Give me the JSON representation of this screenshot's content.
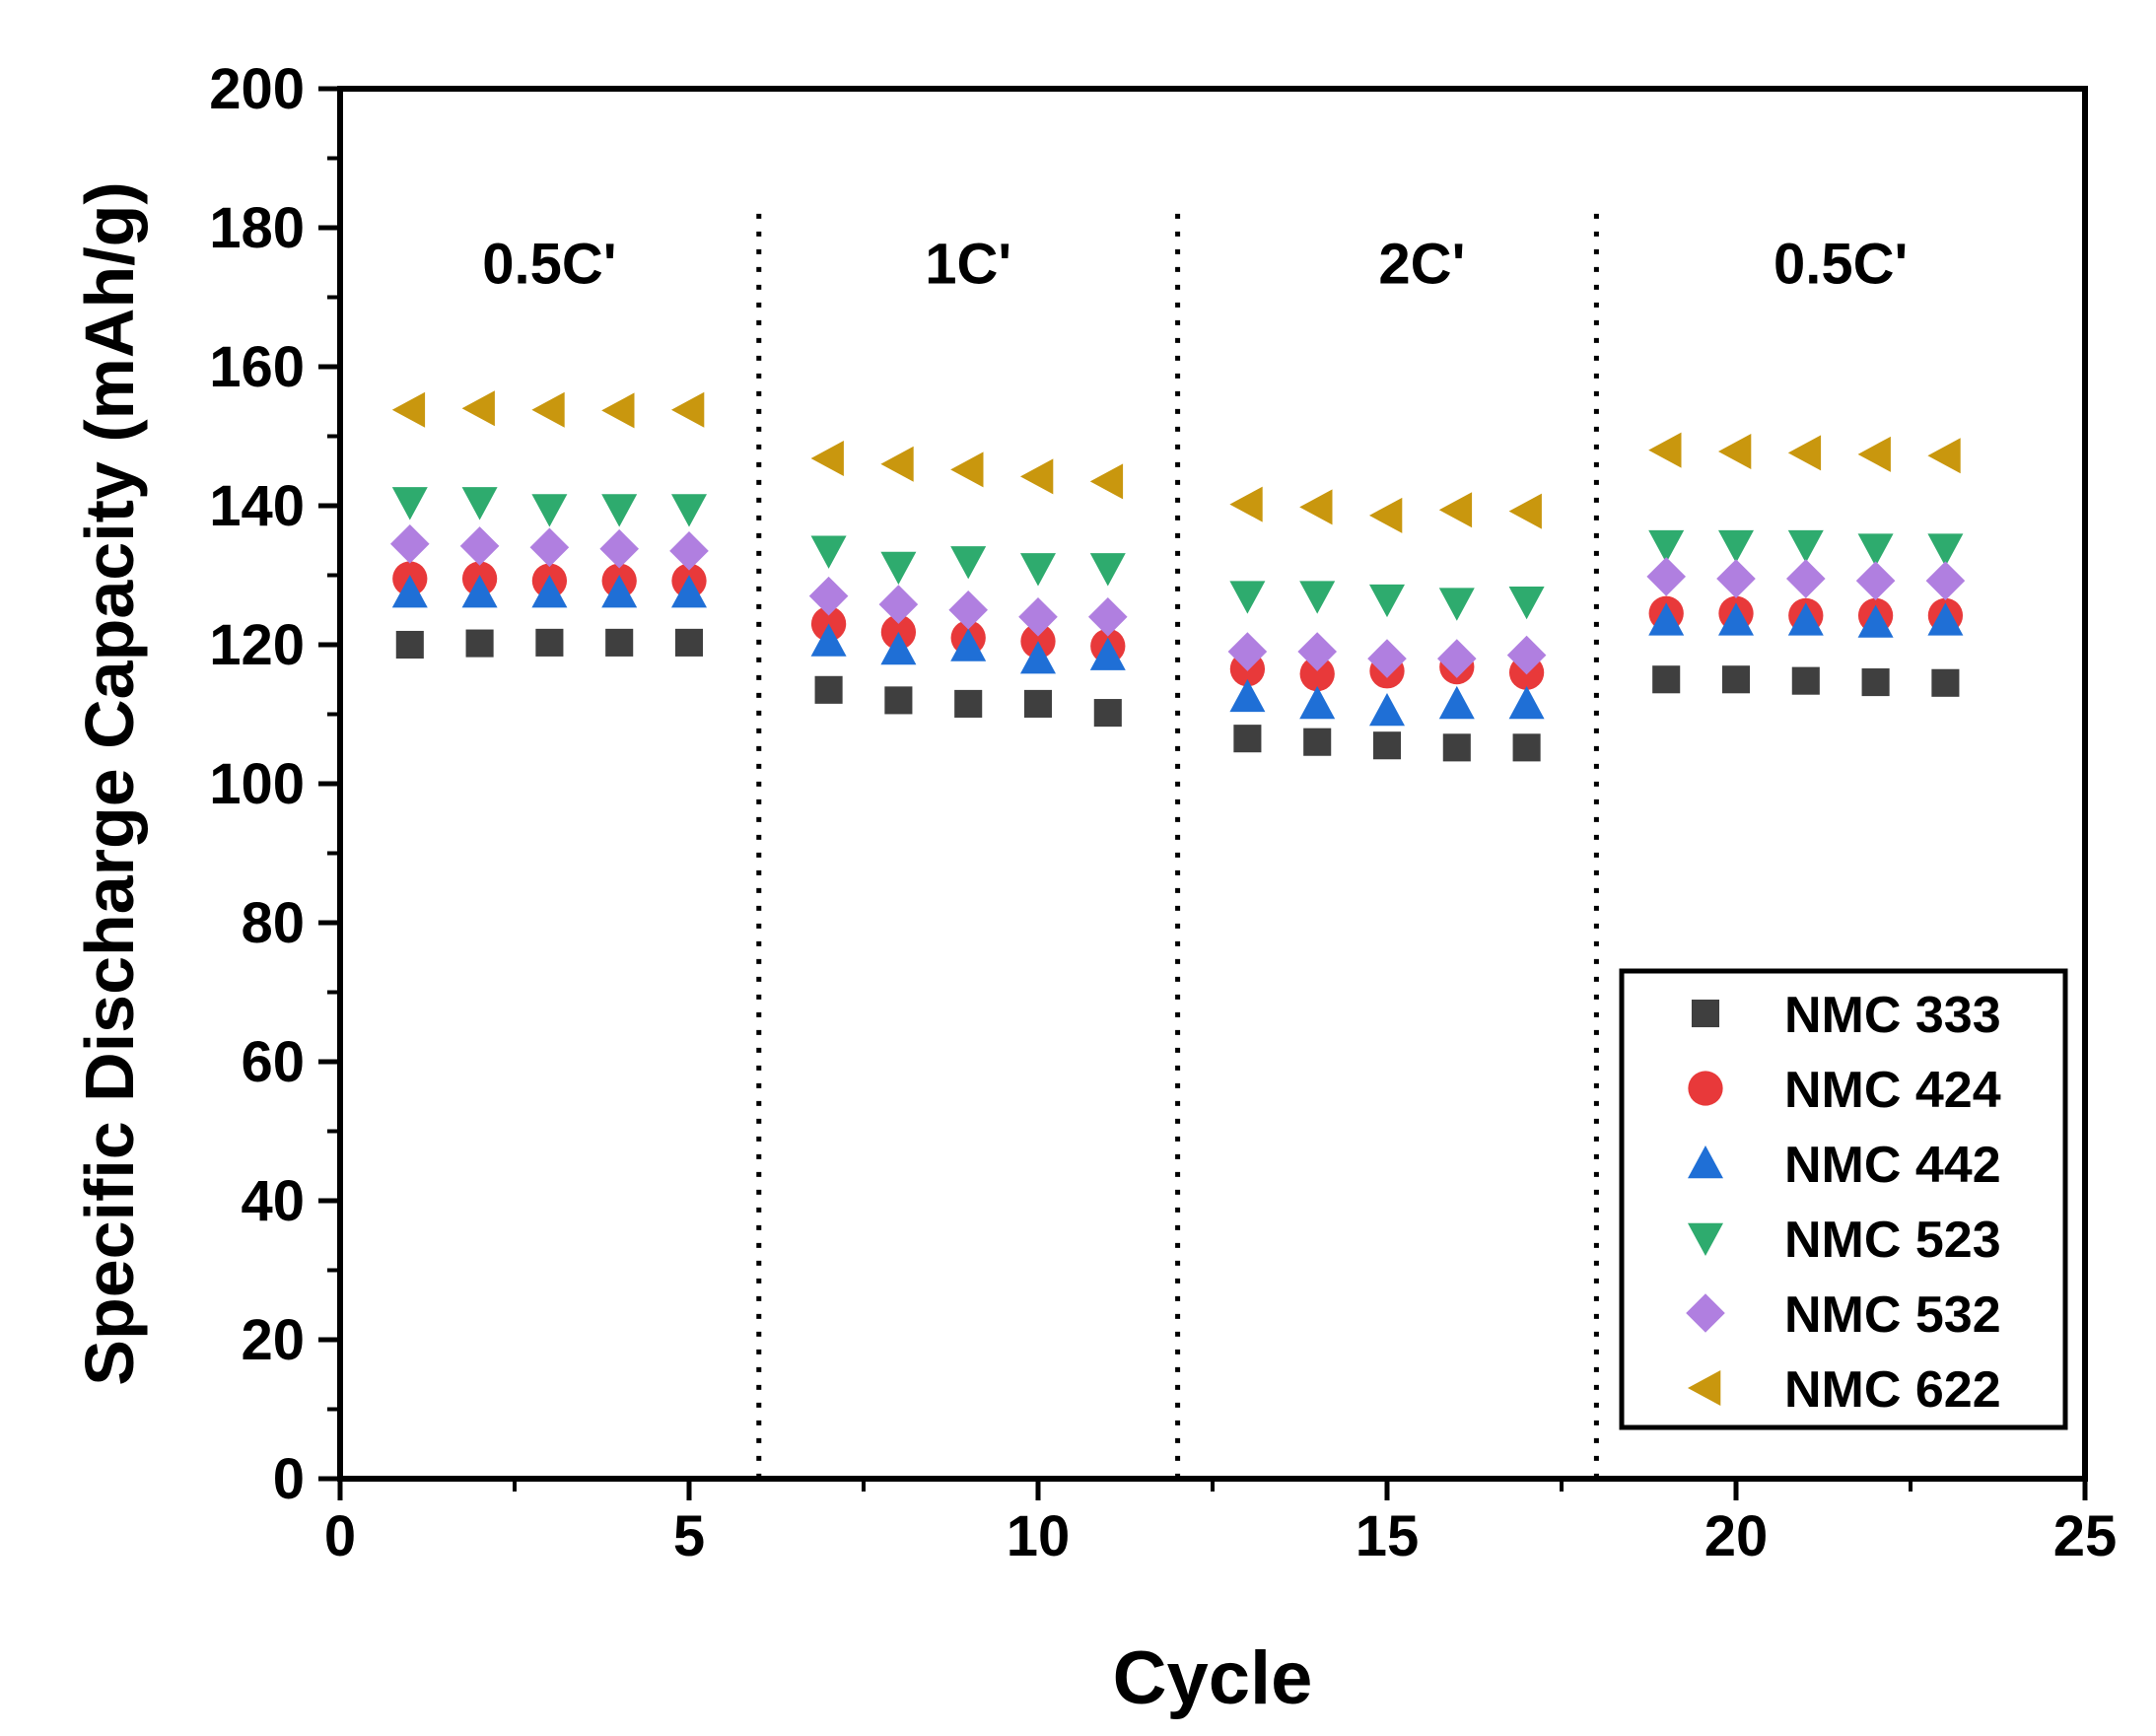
{
  "chart_data": {
    "type": "scatter",
    "title": "",
    "xlabel": "Cycle",
    "ylabel": "Specific Discharge Capacity (mAh/g)",
    "xlim": [
      0,
      25
    ],
    "ylim": [
      0,
      200
    ],
    "xticks": [
      0,
      5,
      10,
      15,
      20,
      25
    ],
    "yticks": [
      0,
      20,
      40,
      60,
      80,
      100,
      120,
      140,
      160,
      180,
      200
    ],
    "grid": false,
    "legend_position": "bottom-right",
    "x": [
      1,
      2,
      3,
      4,
      5,
      7,
      8,
      9,
      10,
      11,
      13,
      14,
      15,
      16,
      17,
      19,
      20,
      21,
      22,
      23
    ],
    "regions": [
      {
        "label": "0.5C'",
        "center_x": 3
      },
      {
        "label": "1C'",
        "center_x": 9
      },
      {
        "label": "2C'",
        "center_x": 15.5
      },
      {
        "label": "0.5C'",
        "center_x": 21.5
      }
    ],
    "dividers": [
      6,
      12,
      18
    ],
    "series": [
      {
        "name": "NMC 333",
        "marker": "square",
        "color": "#3f3f3f",
        "values": [
          120,
          120.2,
          120.3,
          120.3,
          120.3,
          113.5,
          112,
          111.5,
          111.5,
          110.2,
          106.5,
          106,
          105.5,
          105.2,
          105.2,
          115,
          115,
          114.8,
          114.6,
          114.5
        ]
      },
      {
        "name": "NMC 424",
        "marker": "circle",
        "color": "#e8393a",
        "values": [
          129.5,
          129.5,
          129.2,
          129.2,
          129.2,
          123,
          121.8,
          121,
          120.5,
          119.8,
          116.5,
          115.8,
          116.2,
          116.8,
          116,
          124.5,
          124.5,
          124.2,
          124.2,
          124.2
        ]
      },
      {
        "name": "NMC 442",
        "marker": "triangle-up",
        "color": "#1f6fd6",
        "values": [
          127.5,
          127.5,
          127.5,
          127.5,
          127.5,
          120.5,
          119.3,
          119.8,
          118,
          118.5,
          112.5,
          111.5,
          110.5,
          111.5,
          111.5,
          123.5,
          123.5,
          123.5,
          123.2,
          123.5
        ]
      },
      {
        "name": "NMC 523",
        "marker": "triangle-down",
        "color": "#2eab6e",
        "values": [
          140.5,
          140.5,
          139.5,
          139.5,
          139.5,
          133.5,
          131.2,
          132,
          131,
          131,
          127,
          127,
          126.5,
          126,
          126.2,
          134.3,
          134.3,
          134.3,
          133.8,
          133.8
        ]
      },
      {
        "name": "NMC 532",
        "marker": "diamond",
        "color": "#b07fe0",
        "values": [
          134.5,
          134.2,
          134,
          133.8,
          133.5,
          127,
          125.8,
          125,
          124,
          124,
          119,
          119,
          118,
          118,
          118.5,
          129.8,
          129.5,
          129.5,
          129.2,
          129.2
        ]
      },
      {
        "name": "NMC 622",
        "marker": "triangle-left",
        "color": "#c9970e",
        "values": [
          153.8,
          154,
          153.8,
          153.7,
          153.8,
          146.8,
          146,
          145.2,
          144.2,
          143.5,
          140.2,
          139.8,
          138.6,
          139.4,
          139.2,
          148,
          147.8,
          147.6,
          147.4,
          147.2
        ]
      }
    ]
  }
}
